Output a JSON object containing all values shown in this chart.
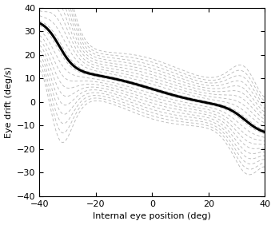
{
  "xlim": [
    -40,
    40
  ],
  "ylim": [
    -40,
    40
  ],
  "xlabel": "Internal eye position (deg)",
  "ylabel": "Eye drift (deg/s)",
  "yticks": [
    -40,
    -30,
    -20,
    -10,
    0,
    10,
    20,
    30,
    40
  ],
  "xticks": [
    -40,
    -20,
    0,
    20,
    40
  ],
  "main_color": "black",
  "dashed_color": "#b0b0b0",
  "n_dashed": 20,
  "main_lw": 2.2,
  "dash_lw": 0.65,
  "figsize": [
    3.44,
    2.82
  ],
  "dpi": 100
}
